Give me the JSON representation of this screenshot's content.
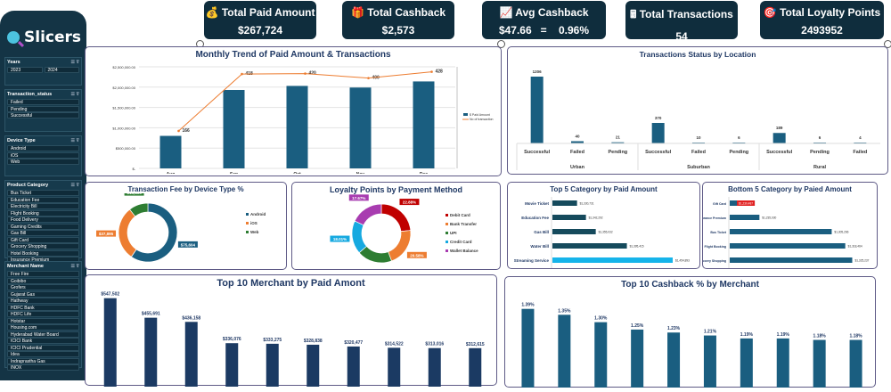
{
  "sidebar": {
    "title": "Slicers",
    "icon": "magnifier-icon",
    "slicers": [
      {
        "name": "Years",
        "items": [
          "2023",
          "2024"
        ]
      },
      {
        "name": "Transaction_status",
        "items": [
          "Failed",
          "Pending",
          "Successful"
        ]
      },
      {
        "name": "Device Type",
        "items": [
          "Android",
          "iOS",
          "Web"
        ]
      },
      {
        "name": "Product Category",
        "items": [
          "Bus Ticket",
          "Education Fee",
          "Electricity Bill",
          "Flight Booking",
          "Food Delivery",
          "Gaming Credits",
          "Gas Bill",
          "Gift Card",
          "Grocery Shopping",
          "Hotel Booking",
          "Insurance Premium"
        ]
      },
      {
        "name": "Merchant Name",
        "items": [
          "Free Fire",
          "Goibibo",
          "Grofers",
          "Gujarat Gas",
          "Hathway",
          "HDFC Bank",
          "HDFC Life",
          "Hotstar",
          "Housing.com",
          "Hyderabad Water Board",
          "ICICI Bank",
          "ICICI Prudential",
          "Idea",
          "Indraprastha Gas",
          "INOX"
        ]
      }
    ]
  },
  "kpis": [
    {
      "label": "Total Paid Amount",
      "value": "$267,724",
      "icon": "money-bag-icon"
    },
    {
      "label": "Total Cashback",
      "value": "$2,573",
      "icon": "gift-icon"
    },
    {
      "label": "Avg  Cashback",
      "value": "$47.66   =    0.96%",
      "icon": "chart-increasing-icon"
    },
    {
      "label": "Total Transactions",
      "value": "54",
      "icon": "cash-register-icon"
    },
    {
      "label": "Total Loyalty Points",
      "value": "2493952",
      "icon": "target-icon"
    }
  ],
  "colors": {
    "bar": "#1a5e80",
    "navy": "#1b3a63",
    "line": "#ed7d31",
    "highlight": "#16b4ea",
    "red": "#e02020"
  },
  "chart_data": [
    {
      "id": "monthly",
      "type": "bar+line",
      "title": "Monthly Trend of Paid Amount & Transactions",
      "categories": [
        "Aug",
        "Sep",
        "Oct",
        "Nov",
        "Dec"
      ],
      "series": [
        {
          "name": "$ Paid Amount",
          "type": "bar",
          "values": [
            800000,
            1930000,
            2030000,
            1990000,
            2140000
          ]
        },
        {
          "name": "No of transaction",
          "type": "line",
          "values": [
            166,
            418,
            420,
            400,
            428
          ]
        }
      ],
      "yticks": [
        "$-",
        "$500,000.00",
        "$1,000,000.00",
        "$1,500,000.00",
        "$2,000,000.00",
        "$2,500,000.00"
      ],
      "ylim": [
        0,
        2500000
      ],
      "y2lim": [
        0,
        450
      ],
      "legend": "right"
    },
    {
      "id": "status",
      "type": "bar",
      "title": "Transactions Status  by Location",
      "groups": [
        {
          "name": "Urban",
          "categories": [
            "Successful",
            "Failed",
            "Pending"
          ],
          "values": [
            1206,
            40,
            21
          ]
        },
        {
          "name": "Suburban",
          "categories": [
            "Successful",
            "Failed",
            "Pending"
          ],
          "values": [
            370,
            10,
            6
          ]
        },
        {
          "name": "Rural",
          "categories": [
            "Successful",
            "Pending",
            "Failed"
          ],
          "values": [
            189,
            6,
            4
          ]
        }
      ]
    },
    {
      "id": "device",
      "type": "donut",
      "title": "Transaction Fee by Device Type %",
      "categories": [
        "Android",
        "iOS",
        "Web"
      ],
      "values": [
        75604,
        37895,
        13495
      ],
      "labels": [
        "$75,604",
        "$37,895",
        "$13,495"
      ],
      "colors": [
        "#1a5e80",
        "#ed7d31",
        "#2e7d32"
      ],
      "legend": "right"
    },
    {
      "id": "loyalty",
      "type": "donut",
      "title": "Loyalty Points by Payment Method",
      "categories": [
        "Debit Card",
        "Bank Transfer",
        "UPI",
        "Credit Card",
        "Wallet Balance"
      ],
      "values": [
        22.88,
        20.58,
        18.86,
        18.01,
        17.67
      ],
      "labels": [
        "22.88%",
        "20.58%",
        "18.86%",
        "18.01%",
        "17.67%"
      ],
      "colors": [
        "#c00000",
        "#ed7d31",
        "#2e7d32",
        "#16a9e0",
        "#a83cb0"
      ],
      "legend": "right"
    },
    {
      "id": "top5",
      "type": "hbar",
      "title": "Top 5 Category by  Paid Amount",
      "categories": [
        "Movie Ticket",
        "Education Fee",
        "Gas Bill",
        "Water Bill",
        "Streaming Service"
      ],
      "values": [
        1330731,
        1342292,
        1355032,
        1395415,
        1454893
      ],
      "labels": [
        "$1,330,731",
        "$1,342,292",
        "$1,355,032",
        "$1,395,415",
        "$1,454,893"
      ]
    },
    {
      "id": "bottom5",
      "type": "hbar",
      "title": "Bottom 5 Category by Paied Amount",
      "categories": [
        "Gift Card",
        "Insurance Premium",
        "Bus Ticket",
        "Flight Booking",
        "Grocery Shopping"
      ],
      "values": [
        1230487,
        1235030,
        1305266,
        1318464,
        1325237
      ],
      "labels": [
        "$1,230,487",
        "$1,235,030",
        "$1,305,266",
        "$1,318,464",
        "$1,325,237"
      ]
    },
    {
      "id": "merchant",
      "type": "bar",
      "title": "Top 10  Merchant by Paid Amont",
      "values": [
        547502,
        455691,
        436158,
        336076,
        333275,
        328838,
        320477,
        314522,
        313016,
        312615
      ],
      "labels": [
        "$547,502",
        "$455,691",
        "$436,158",
        "$336,076",
        "$333,275",
        "$328,838",
        "$320,477",
        "$314,522",
        "$313,016",
        "$312,615"
      ]
    },
    {
      "id": "cashback",
      "type": "bar",
      "title": "Top 10 Cashback % by Merchant",
      "values": [
        1.39,
        1.35,
        1.3,
        1.25,
        1.23,
        1.21,
        1.19,
        1.19,
        1.18,
        1.18
      ],
      "labels": [
        "1.39%",
        "1.35%",
        "1.30%",
        "1.25%",
        "1.23%",
        "1.21%",
        "1.19%",
        "1.19%",
        "1.18%",
        "1.18%"
      ]
    }
  ]
}
